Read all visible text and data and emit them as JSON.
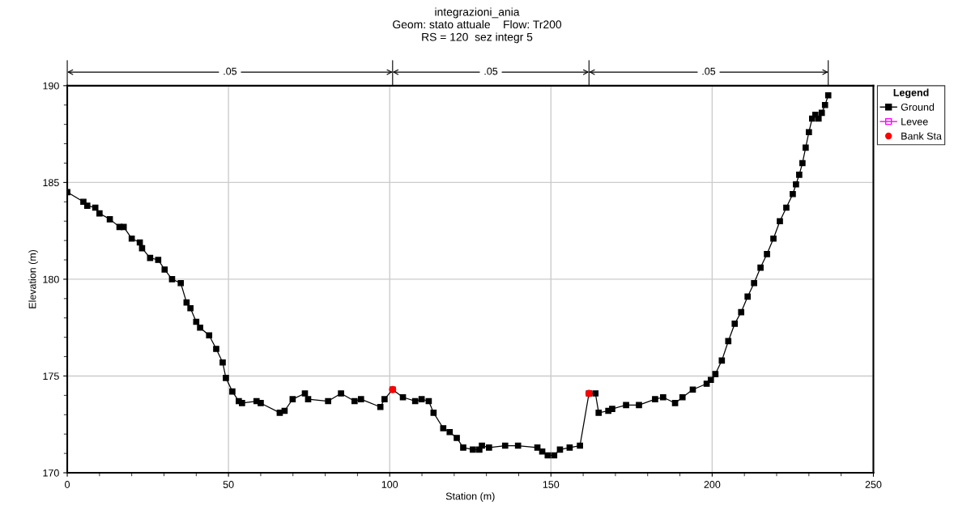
{
  "chart_data": {
    "type": "line",
    "title": "integrazioni_ania",
    "subtitle": "Geom: stato attuale    Flow: Tr200\nRS = 120  sez integr 5",
    "xlabel": "Station (m)",
    "ylabel": "Elevation (m)",
    "legend_title": "Legend",
    "legend": "top right",
    "grid": true,
    "annotations": [
      ".05",
      ".05",
      ".05"
    ],
    "xlim": [
      0,
      250
    ],
    "ylim": [
      170,
      190
    ],
    "xticks": [
      0,
      {
        "value": 10,
        "label": null
      },
      {
        "value": 20,
        "label": null
      },
      {
        "value": 30,
        "label": null
      },
      {
        "value": 40,
        "label": null
      },
      50,
      {
        "value": 60,
        "label": null
      },
      {
        "value": 70,
        "label": null
      },
      {
        "value": 80,
        "label": null
      },
      {
        "value": 90,
        "label": null
      },
      100,
      {
        "value": 110,
        "label": null
      },
      {
        "value": 120,
        "label": null
      },
      {
        "value": 130,
        "label": null
      },
      {
        "value": 140,
        "label": null
      },
      150,
      {
        "value": 160,
        "label": null
      },
      {
        "value": 170,
        "label": null
      },
      {
        "value": 180,
        "label": null
      },
      {
        "value": 190,
        "label": null
      },
      200,
      {
        "value": 210,
        "label": null
      },
      {
        "value": 220,
        "label": null
      },
      {
        "value": 230,
        "label": null
      },
      {
        "value": 240,
        "label": null
      },
      250
    ],
    "yticks": [
      170,
      {
        "value": 171,
        "label": null
      },
      {
        "value": 172,
        "label": null
      },
      {
        "value": 173,
        "label": null
      },
      {
        "value": 174,
        "label": null
      },
      175,
      {
        "value": 176,
        "label": null
      },
      {
        "value": 177,
        "label": null
      },
      {
        "value": 178,
        "label": null
      },
      {
        "value": 179,
        "label": null
      },
      180,
      {
        "value": 181,
        "label": null
      },
      {
        "value": 182,
        "label": null
      },
      {
        "value": 183,
        "label": null
      },
      {
        "value": 184,
        "label": null
      },
      185,
      {
        "value": 186,
        "label": null
      },
      {
        "value": 187,
        "label": null
      },
      {
        "value": 188,
        "label": null
      },
      {
        "value": 189,
        "label": null
      },
      190
    ],
    "series": [
      {
        "name": "Ground",
        "color": "#000000",
        "marker": "square",
        "line_style": "solid",
        "x": [
          0,
          5,
          6.2,
          8.7,
          10,
          13.2,
          16.2,
          17.5,
          20,
          22.5,
          23.2,
          25.7,
          28.2,
          30.2,
          32.5,
          35.2,
          37,
          38.2,
          40,
          41.2,
          44,
          46.2,
          48.2,
          49.2,
          51.2,
          53.2,
          54.2,
          58.7,
          60,
          65.9,
          67.4,
          69.9,
          73.7,
          74.7,
          80.9,
          84.9,
          89.1,
          91.1,
          97.1,
          98.4,
          100.9,
          104.1,
          107.9,
          109.9,
          112.1,
          113.6,
          116.6,
          118.6,
          120.8,
          122.8,
          125.8,
          127.8,
          128.6,
          130.8,
          135.8,
          139.8,
          145.8,
          147.3,
          149,
          151,
          152.8,
          155.8,
          159,
          161.8,
          163.8,
          164.8,
          167.8,
          169,
          173.3,
          177.3,
          182.3,
          184.8,
          188.5,
          190.8,
          194,
          198.3,
          199.6,
          201,
          203,
          205,
          207,
          209,
          211,
          213,
          215,
          217,
          219,
          221,
          223,
          225,
          226,
          227,
          228,
          229,
          230,
          231,
          232,
          233,
          234,
          235,
          236
        ],
        "values": [
          184.5,
          184.0,
          183.8,
          183.7,
          183.4,
          183.1,
          182.7,
          182.7,
          182.1,
          181.9,
          181.6,
          181.1,
          181.0,
          180.5,
          180.0,
          179.8,
          178.8,
          178.5,
          177.8,
          177.5,
          177.1,
          176.4,
          175.7,
          174.9,
          174.2,
          173.7,
          173.6,
          173.7,
          173.6,
          173.1,
          173.2,
          173.8,
          174.1,
          173.8,
          173.7,
          174.1,
          173.7,
          173.8,
          173.4,
          173.8,
          174.3,
          173.9,
          173.7,
          173.8,
          173.7,
          173.1,
          172.3,
          172.1,
          171.8,
          171.3,
          171.2,
          171.2,
          171.4,
          171.3,
          171.4,
          171.4,
          171.3,
          171.1,
          170.9,
          170.9,
          171.2,
          171.3,
          171.4,
          174.1,
          174.1,
          173.1,
          173.2,
          173.3,
          173.5,
          173.5,
          173.8,
          173.9,
          173.6,
          173.9,
          174.3,
          174.6,
          174.8,
          175.1,
          175.8,
          176.8,
          177.7,
          178.3,
          179.1,
          179.8,
          180.6,
          181.3,
          182.1,
          183.0,
          183.7,
          184.4,
          184.9,
          185.4,
          186.0,
          186.8,
          187.6,
          188.3,
          188.5,
          188.3,
          188.6,
          189.0,
          189.5
        ]
      },
      {
        "name": "Levee",
        "color": "#ff00ff",
        "marker": "square",
        "line_style": "solid"
      },
      {
        "name": "Bank Sta",
        "type": "scatter",
        "color": "#ff0000",
        "marker": "circle",
        "x": [
          100.9,
          161.8
        ],
        "values": [
          174.3,
          174.1
        ]
      }
    ]
  }
}
